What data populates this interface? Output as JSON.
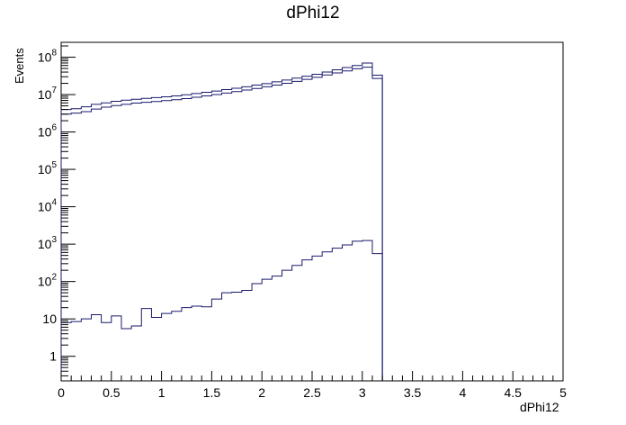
{
  "chart_data": {
    "type": "step",
    "title": "dPhi12",
    "xlabel": "dPhi12",
    "ylabel": "Events",
    "xlim": [
      0,
      5
    ],
    "ylim": [
      0.22,
      250000000
    ],
    "yscale": "log",
    "grid": false,
    "legend": "none",
    "bin_edges": [
      0,
      0.1,
      0.2,
      0.3,
      0.4,
      0.5,
      0.6,
      0.7,
      0.8,
      0.9,
      1.0,
      1.1,
      1.2,
      1.3,
      1.4,
      1.5,
      1.6,
      1.7,
      1.8,
      1.9,
      2.0,
      2.1,
      2.2,
      2.3,
      2.4,
      2.5,
      2.6,
      2.7,
      2.8,
      2.9,
      3.0,
      3.1,
      3.2
    ],
    "x_ticks": [
      {
        "value": 0,
        "label": "0"
      },
      {
        "value": 0.5,
        "label": "0.5"
      },
      {
        "value": 1,
        "label": "1"
      },
      {
        "value": 1.5,
        "label": "1.5"
      },
      {
        "value": 2,
        "label": "2"
      },
      {
        "value": 2.5,
        "label": "2.5"
      },
      {
        "value": 3,
        "label": "3"
      },
      {
        "value": 3.5,
        "label": "3.5"
      },
      {
        "value": 4,
        "label": "4"
      },
      {
        "value": 4.5,
        "label": "4.5"
      },
      {
        "value": 5,
        "label": "5"
      }
    ],
    "y_ticks": [
      {
        "value": 1,
        "base": "1",
        "exp": ""
      },
      {
        "value": 10,
        "base": "10",
        "exp": ""
      },
      {
        "value": 100,
        "base": "10",
        "exp": "2"
      },
      {
        "value": 1000,
        "base": "10",
        "exp": "3"
      },
      {
        "value": 10000,
        "base": "10",
        "exp": "4"
      },
      {
        "value": 100000,
        "base": "10",
        "exp": "5"
      },
      {
        "value": 1000000,
        "base": "10",
        "exp": "6"
      },
      {
        "value": 10000000,
        "base": "10",
        "exp": "7"
      },
      {
        "value": 100000000,
        "base": "10",
        "exp": "8"
      }
    ],
    "series": [
      {
        "color": "#1a1a6e",
        "values": [
          4000000,
          4200000,
          4700000,
          5500000,
          6000000,
          6600000,
          7100000,
          7500000,
          7900000,
          8300000,
          8700000,
          9200000,
          9900000,
          10700000,
          11500000,
          12400000,
          13600000,
          14800000,
          16200000,
          17900000,
          19700000,
          22000000,
          24500000,
          27500000,
          31000000,
          35000000,
          40000000,
          46000000,
          53000000,
          60000000,
          70000000,
          33000000
        ]
      },
      {
        "color": "#1a1a6e",
        "values": [
          3000000,
          3200000,
          3500000,
          4100000,
          4600000,
          5100000,
          5500000,
          5900000,
          6200000,
          6500000,
          6900000,
          7300000,
          7800000,
          8500000,
          9200000,
          10000000,
          11000000,
          12000000,
          13200000,
          14600000,
          16200000,
          18000000,
          20000000,
          22500000,
          25500000,
          29000000,
          33500000,
          38000000,
          43000000,
          49000000,
          54000000,
          27000000
        ]
      },
      {
        "color": "#1a1a6e",
        "values": [
          8,
          8.5,
          10,
          13,
          8,
          12,
          5.5,
          6.5,
          19,
          11,
          14,
          16,
          20,
          22,
          21,
          34,
          50,
          52,
          58,
          88,
          115,
          140,
          200,
          270,
          380,
          480,
          620,
          780,
          950,
          1200,
          1250,
          560
        ]
      }
    ]
  }
}
